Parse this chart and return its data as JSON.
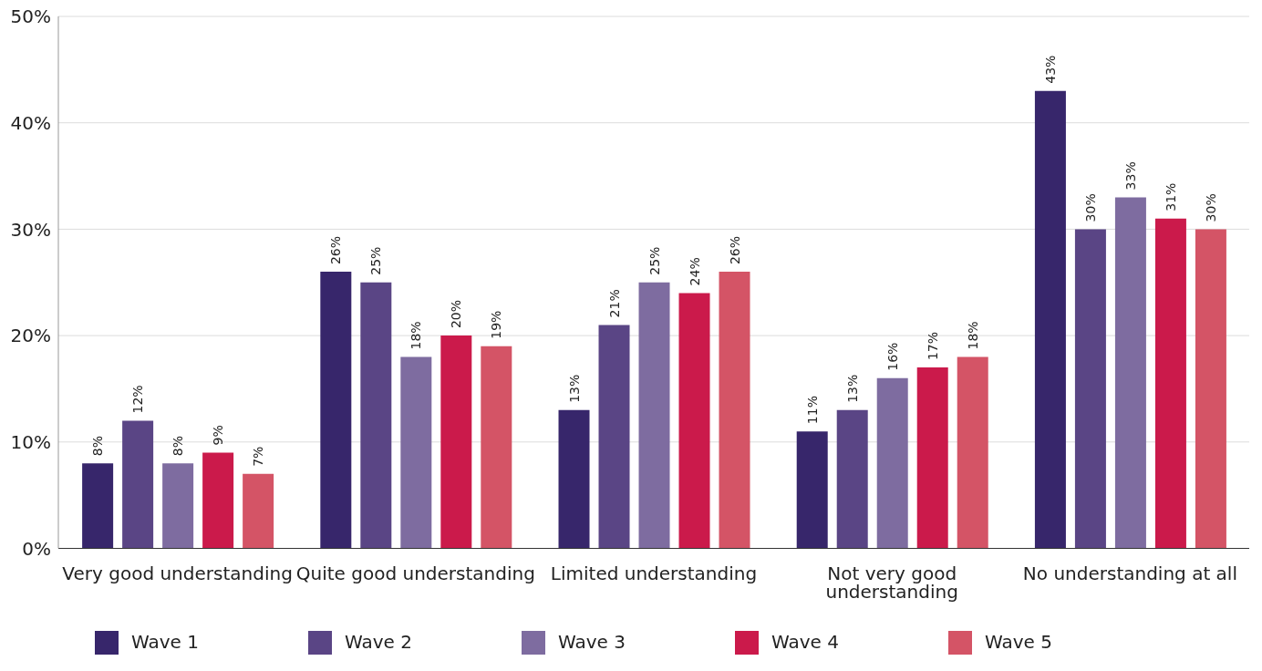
{
  "chart_data": {
    "type": "bar",
    "categories": [
      "Very good understanding",
      "Quite good understanding",
      "Limited understanding",
      "Not very good understanding",
      "No understanding at all"
    ],
    "series": [
      {
        "name": "Wave 1",
        "color": "#37266b",
        "values": [
          8,
          26,
          13,
          11,
          43
        ],
        "value_labels": [
          "8%",
          "26%",
          "13%",
          "11%",
          "43%"
        ]
      },
      {
        "name": "Wave 2",
        "color": "#5a4585",
        "values": [
          12,
          25,
          21,
          13,
          30
        ],
        "value_labels": [
          "12%",
          "25%",
          "21%",
          "13%",
          "30%"
        ]
      },
      {
        "name": "Wave 3",
        "color": "#7e6ca0",
        "values": [
          8,
          18,
          25,
          16,
          33
        ],
        "value_labels": [
          "8%",
          "18%",
          "25%",
          "16%",
          "33%"
        ]
      },
      {
        "name": "Wave 4",
        "color": "#cb1a4b",
        "values": [
          9,
          20,
          24,
          17,
          31
        ],
        "value_labels": [
          "9%",
          "20%",
          "24%",
          "17%",
          "31%"
        ]
      },
      {
        "name": "Wave 5",
        "color": "#d45466",
        "values": [
          7,
          19,
          26,
          18,
          30
        ],
        "value_labels": [
          "7%",
          "19%",
          "26%",
          "18%",
          "30%"
        ]
      }
    ],
    "ylim": [
      0,
      50
    ],
    "yticks": [
      {
        "value": 0,
        "label": "0%"
      },
      {
        "value": 10,
        "label": "10%"
      },
      {
        "value": 20,
        "label": "20%"
      },
      {
        "value": 30,
        "label": "30%"
      },
      {
        "value": 40,
        "label": "40%"
      },
      {
        "value": 50,
        "label": "50%"
      }
    ],
    "grid": "y",
    "legend": "bottom"
  }
}
